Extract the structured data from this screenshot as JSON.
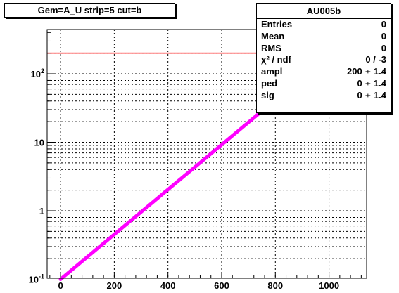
{
  "chart_data": {
    "type": "scatter",
    "title": "Gem=A_U strip=5 cut=b",
    "xlabel": "",
    "ylabel": "",
    "xlim": [
      -50,
      1140
    ],
    "ylim": [
      0.1,
      300
    ],
    "yscale": "log",
    "x_ticks": [
      0,
      200,
      400,
      600,
      800,
      1000
    ],
    "x_tick_labels": [
      "0",
      "200",
      "400",
      "600",
      "800",
      "1000"
    ],
    "y_tick_labels": [
      {
        "value": 0.1,
        "base": "10",
        "exp": "-1"
      },
      {
        "value": 1,
        "base": "1",
        "exp": ""
      },
      {
        "value": 10,
        "base": "10",
        "exp": ""
      },
      {
        "value": 100,
        "base": "10",
        "exp": "2"
      }
    ],
    "grid": true,
    "series": [
      {
        "kind": "fit-constant",
        "color": "#ff0000",
        "x": [
          -50,
          1140
        ],
        "y": [
          200,
          200
        ]
      },
      {
        "kind": "fit-line",
        "color": "#ff00ff",
        "x": [
          0,
          1100
        ],
        "y": [
          0.1,
          400
        ]
      }
    ],
    "stats": {
      "title": "AU005b",
      "rows": [
        {
          "label": "Entries",
          "value": "0"
        },
        {
          "label": "Mean",
          "value": "0"
        },
        {
          "label": "RMS",
          "value": "0"
        },
        {
          "label": "χ² / ndf",
          "value": "0 / -3"
        },
        {
          "label": "ampl",
          "value": "200",
          "err": "1.4"
        },
        {
          "label": "ped",
          "value": "0",
          "err": "1.4"
        },
        {
          "label": "sig",
          "value": "0",
          "err": "1.4"
        }
      ],
      "pm_symbol": "±"
    }
  },
  "colors": {
    "axis": "#000000",
    "grid": "#000000",
    "constant_line": "#ff0000",
    "diagonal_line": "#ff00ff"
  }
}
